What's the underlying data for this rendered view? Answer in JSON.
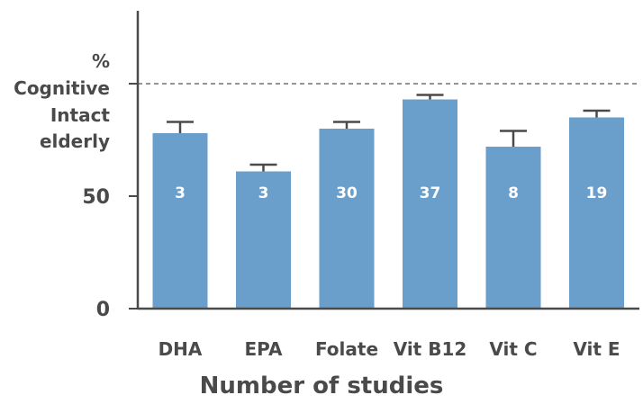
{
  "chart_data": {
    "type": "bar",
    "ylabel_lines": [
      "%",
      "Cognitive",
      "Intact",
      "elderly"
    ],
    "xlabel": "Number of studies",
    "categories": [
      "DHA",
      "EPA",
      "Folate",
      "Vit B12",
      "Vit C",
      "Vit E"
    ],
    "values": [
      78,
      61,
      80,
      93,
      72,
      85
    ],
    "error_upper": [
      83,
      64,
      83,
      95,
      79,
      88
    ],
    "study_counts": [
      "3",
      "3",
      "30",
      "37",
      "8",
      "19"
    ],
    "ylim": [
      0,
      100
    ],
    "y_ticks": [
      0,
      50
    ],
    "reference_line": 100,
    "grid": false,
    "colors": {
      "bar": "#6a9fcb",
      "axis": "#4a4a4a",
      "text": "#4a4a4a",
      "bar_label": "#ffffff",
      "reference": "#555555"
    }
  }
}
